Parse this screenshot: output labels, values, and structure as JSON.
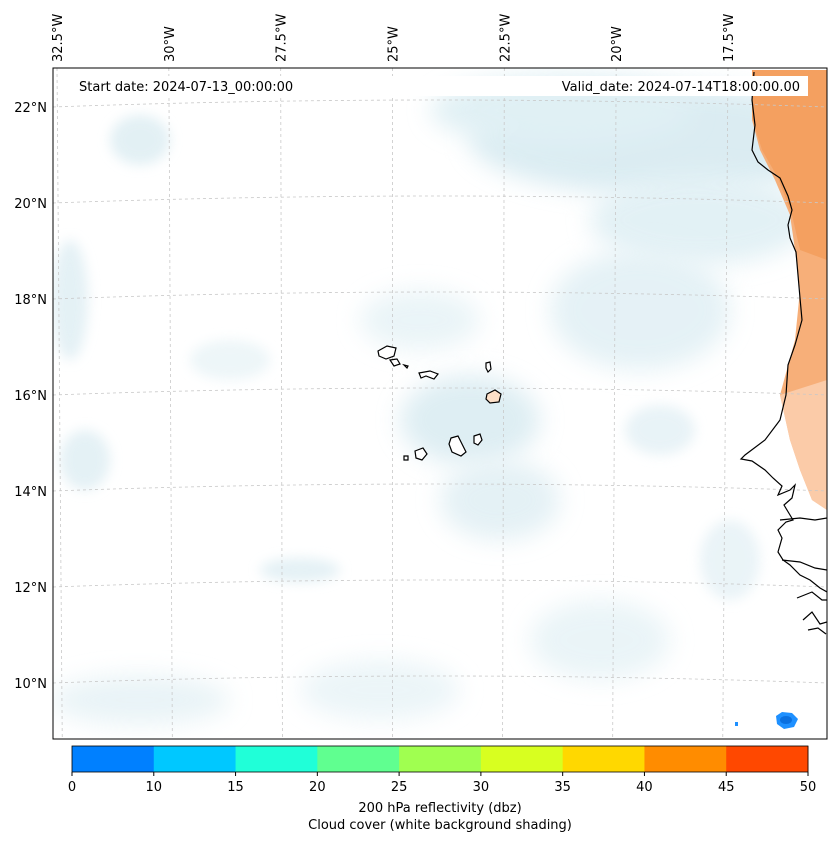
{
  "map": {
    "start_date_text": "Start date: 2024-07-13_00:00:00",
    "valid_date_text": "Valid_date: 2024-07-14T18:00:00.00",
    "lon_ticks": [
      {
        "label": "32.5°W",
        "lon": -32.5
      },
      {
        "label": "30°W",
        "lon": -30
      },
      {
        "label": "27.5°W",
        "lon": -27.5
      },
      {
        "label": "25°W",
        "lon": -25
      },
      {
        "label": "22.5°W",
        "lon": -22.5
      },
      {
        "label": "20°W",
        "lon": -20
      },
      {
        "label": "17.5°W",
        "lon": -17.5
      }
    ],
    "lat_ticks": [
      {
        "label": "22°N",
        "lat": 22
      },
      {
        "label": "20°N",
        "lat": 20
      },
      {
        "label": "18°N",
        "lat": 18
      },
      {
        "label": "16°N",
        "lat": 16
      },
      {
        "label": "14°N",
        "lat": 14
      },
      {
        "label": "12°N",
        "lat": 12
      },
      {
        "label": "10°N",
        "lat": 10
      }
    ],
    "colors": {
      "land_outline": "#000000",
      "cloud_shading": "#bfe0ea",
      "gridline": "#c8c8c8",
      "high_reflectivity": "#f4a460",
      "storm_cell": "#1e90ff"
    }
  },
  "colorbar": {
    "ticks": [
      "0",
      "10",
      "15",
      "20",
      "25",
      "30",
      "35",
      "40",
      "45",
      "50"
    ],
    "colors": [
      "#0080ff",
      "#00c8ff",
      "#20ffd8",
      "#60ff90",
      "#a0ff50",
      "#d8ff20",
      "#ffd800",
      "#ff8c00",
      "#ff4800"
    ],
    "label_line1": "200 hPa reflectivity (dbz)",
    "label_line2": "Cloud cover (white background shading)"
  }
}
